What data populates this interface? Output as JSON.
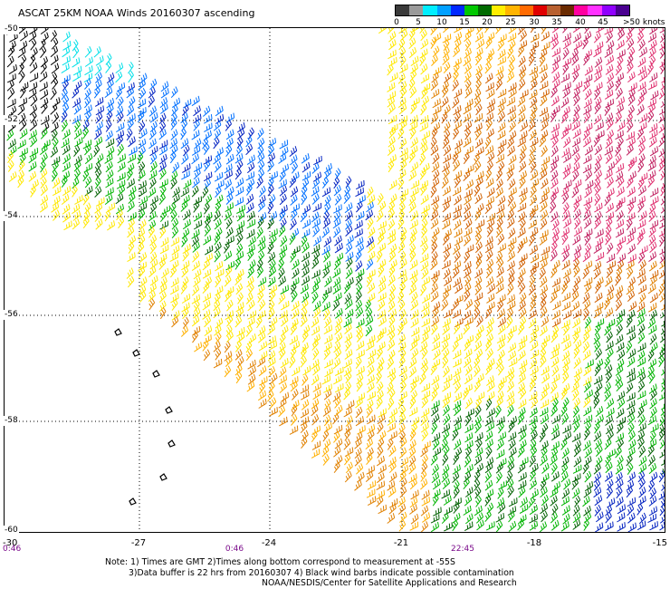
{
  "title": "ASCAT 25KM NOAA Winds 20160307 ascending",
  "scale": {
    "labels": [
      "0",
      "5",
      "10",
      "15",
      "20",
      "25",
      "30",
      "35",
      "40",
      "45",
      ">50 knots"
    ],
    "colors": [
      "#3a3a3a",
      "#9a9a9a",
      "#00eeff",
      "#00a0ff",
      "#0028ff",
      "#00c800",
      "#006a00",
      "#ffee00",
      "#ffb400",
      "#ff6a00",
      "#e00000",
      "#b86030",
      "#6a2a00",
      "#ff00a0",
      "#ff30ff",
      "#9000ff",
      "#4a0090"
    ]
  },
  "lat_labels": [
    "-50",
    "-52",
    "-54",
    "-56",
    "-58",
    "-60"
  ],
  "lon_labels": [
    "-30",
    "-27",
    "-24",
    "-21",
    "-18",
    "-15"
  ],
  "time_labels": [
    "0:46",
    "0:46",
    "22:45"
  ],
  "notes": [
    "Note: 1) Times are GMT 2)Times along bottom correspond to measurement at -55S",
    "3)Data buffer is 22 hrs from 20160307 4) Black wind barbs indicate possible contamination",
    "NOAA/NESDIS/Center for Satellite Applications and Research"
  ],
  "wind_colors": {
    "contaminated": "#000000",
    "calm": "#00e0e8",
    "light": "#0070ff",
    "light_dark": "#0020c0",
    "moderate": "#00b400",
    "moderate_dark": "#006000",
    "fresh": "#ffe800",
    "strong": "#ffb000",
    "strong_dark": "#e08000",
    "gale": "#d06000",
    "storm": "#c02060",
    "storm_light": "#e03070"
  }
}
